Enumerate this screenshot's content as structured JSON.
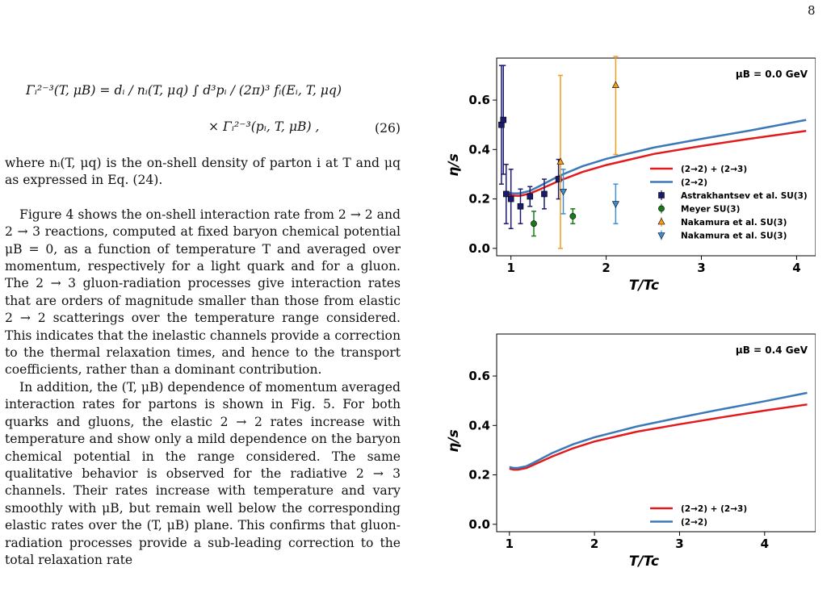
{
  "page_number": "8",
  "equation": {
    "lhs": "Γᵢ²⁻³(T, μB) = dᵢ / nᵢ(T, μq) ∫ d³pᵢ / (2π)³ fᵢ(Eᵢ, T, μq)",
    "rhs": "× Γᵢ²⁻³(pᵢ, T, μB) ,",
    "number": "(26)"
  },
  "paragraphs": [
    "where nᵢ(T, μq) is the on-shell density of parton i at T and μq as expressed in Eq. (24).",
    "Figure 4 shows the on-shell interaction rate from 2 → 2 and 2 → 3 reactions, computed at fixed baryon chemical potential μB = 0, as a function of temperature T and averaged over momentum, respectively for a light quark and for a gluon. The 2 → 3 gluon-radiation processes give interaction rates that are orders of magnitude smaller than those from elastic 2 → 2 scatterings over the temperature range considered. This indicates that the inelastic channels provide a correction to the thermal relaxation times, and hence to the transport coefficients, rather than a dominant contribution.",
    "In addition, the (T, μB) dependence of momentum averaged interaction rates for partons is shown in Fig. 5. For both quarks and gluons, the elastic 2 → 2 rates increase with temperature and show only a mild dependence on the baryon chemical potential in the range considered. The same qualitative behavior is observed for the radiative 2 → 3 channels. Their rates increase with temperature and vary smoothly with μB, but remain well below the corresponding elastic rates over the (T, μB) plane. This confirms that gluon-radiation processes provide a sub-leading correction to the total relaxation rate"
  ],
  "chart_data": [
    {
      "type": "line",
      "annotation": "μB = 0.0 GeV",
      "xlabel": "T/Tc",
      "ylabel": "η/s",
      "xlim": [
        0.85,
        4.2
      ],
      "ylim": [
        -0.03,
        0.77
      ],
      "xticks": [
        "1",
        "2",
        "3",
        "4"
      ],
      "yticks": [
        "0.0",
        "0.2",
        "0.4",
        "0.6"
      ],
      "grid": false,
      "legend_position": "right",
      "series": [
        {
          "name": "(2→2) + (2→3)",
          "color": "#e31a1c",
          "x": [
            0.95,
            1.0,
            1.05,
            1.1,
            1.2,
            1.3,
            1.5,
            1.75,
            2.0,
            2.5,
            3.0,
            3.5,
            4.1
          ],
          "y": [
            0.225,
            0.215,
            0.213,
            0.213,
            0.222,
            0.238,
            0.272,
            0.309,
            0.337,
            0.382,
            0.414,
            0.443,
            0.475
          ]
        },
        {
          "name": "(2→2)",
          "color": "#3b78b8",
          "x": [
            0.95,
            1.0,
            1.05,
            1.1,
            1.2,
            1.3,
            1.5,
            1.75,
            2.0,
            2.5,
            3.0,
            3.5,
            4.1
          ],
          "y": [
            0.228,
            0.223,
            0.222,
            0.223,
            0.233,
            0.252,
            0.292,
            0.332,
            0.362,
            0.408,
            0.443,
            0.476,
            0.52
          ]
        }
      ],
      "points": [
        {
          "name": "Astrakhantsev et al. SU(3)",
          "color": "#1a1a6e",
          "marker": "square",
          "x": [
            0.9,
            0.92,
            0.95,
            1.0,
            1.1,
            1.2,
            1.35,
            1.5
          ],
          "y": [
            0.5,
            0.52,
            0.22,
            0.2,
            0.17,
            0.21,
            0.22,
            0.28
          ],
          "err": [
            0.24,
            0.22,
            0.12,
            0.12,
            0.07,
            0.04,
            0.06,
            0.08
          ]
        },
        {
          "name": "Meyer SU(3)",
          "color": "#1a7a1a",
          "marker": "circle",
          "x": [
            1.24,
            1.65
          ],
          "y": [
            0.1,
            0.13
          ],
          "err": [
            0.05,
            0.03
          ]
        },
        {
          "name": "Nakamura et al. SU(3)",
          "color": "#f39c1e",
          "marker": "triangle-up",
          "x": [
            1.52,
            2.1
          ],
          "y": [
            0.35,
            0.66
          ],
          "err": [
            0.35,
            0.28
          ]
        },
        {
          "name": "Nakamura et al. SU(3)",
          "color": "#3b8fd6",
          "marker": "triangle-down",
          "x": [
            1.55,
            2.1
          ],
          "y": [
            0.23,
            0.18
          ],
          "err": [
            0.09,
            0.08
          ]
        }
      ]
    },
    {
      "type": "line",
      "annotation": "μB = 0.4 GeV",
      "xlabel": "T/Tc",
      "ylabel": "η/s",
      "xlim": [
        0.85,
        4.6
      ],
      "ylim": [
        -0.03,
        0.77
      ],
      "xticks": [
        "1",
        "2",
        "3",
        "4"
      ],
      "yticks": [
        "0.0",
        "0.2",
        "0.4",
        "0.6"
      ],
      "grid": false,
      "legend_position": "lower right",
      "series": [
        {
          "name": "(2→2) + (2→3)",
          "color": "#e31a1c",
          "x": [
            1.0,
            1.05,
            1.1,
            1.2,
            1.3,
            1.5,
            1.75,
            2.0,
            2.5,
            3.0,
            3.5,
            4.0,
            4.5
          ],
          "y": [
            0.225,
            0.221,
            0.221,
            0.228,
            0.243,
            0.274,
            0.308,
            0.335,
            0.375,
            0.405,
            0.433,
            0.46,
            0.485
          ]
        },
        {
          "name": "(2→2)",
          "color": "#3b78b8",
          "x": [
            1.0,
            1.05,
            1.1,
            1.2,
            1.3,
            1.5,
            1.75,
            2.0,
            2.5,
            3.0,
            3.5,
            4.0,
            4.5
          ],
          "y": [
            0.232,
            0.228,
            0.228,
            0.235,
            0.252,
            0.288,
            0.324,
            0.352,
            0.396,
            0.432,
            0.466,
            0.498,
            0.532
          ]
        }
      ]
    }
  ]
}
